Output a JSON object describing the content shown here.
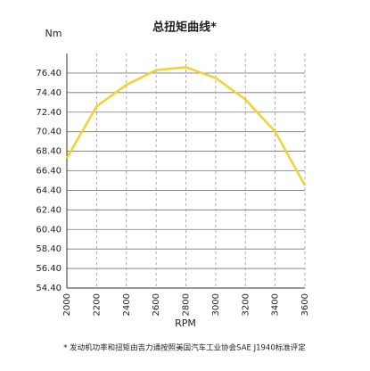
{
  "chart_data": {
    "type": "line",
    "title": "总扭矩曲线*",
    "y_label": "Nm",
    "x_label": "RPM",
    "footnote": "* 发动机功率和扭矩由吉力通按照美国汽车工业协会SAE J1940标准评定",
    "x": [
      2000,
      2200,
      2400,
      2600,
      2800,
      3000,
      3200,
      3400,
      3600
    ],
    "series": [
      {
        "name": "总扭矩",
        "color": "#f2d22e",
        "values": [
          67.7,
          73.0,
          75.2,
          76.7,
          77.0,
          75.9,
          73.7,
          70.4,
          64.9
        ]
      }
    ],
    "xlim": [
      2000,
      3600
    ],
    "xticks": [
      2000,
      2200,
      2400,
      2600,
      2800,
      3000,
      3200,
      3400,
      3600
    ],
    "ylim": [
      54.4,
      78.4
    ],
    "yticks": [
      {
        "value": 54.4,
        "label": "54.40"
      },
      {
        "value": 56.4,
        "label": "56.40"
      },
      {
        "value": 58.4,
        "label": "58.40"
      },
      {
        "value": 60.4,
        "label": "60.40"
      },
      {
        "value": 62.4,
        "label": "62.40"
      },
      {
        "value": 64.4,
        "label": "64.40"
      },
      {
        "value": 66.4,
        "label": "66.40"
      },
      {
        "value": 68.4,
        "label": "68.40"
      },
      {
        "value": 70.4,
        "label": "70.40"
      },
      {
        "value": 72.4,
        "label": "72.40"
      },
      {
        "value": 74.4,
        "label": "74.40"
      },
      {
        "value": 76.4,
        "label": "76.40"
      }
    ],
    "grid": true
  }
}
